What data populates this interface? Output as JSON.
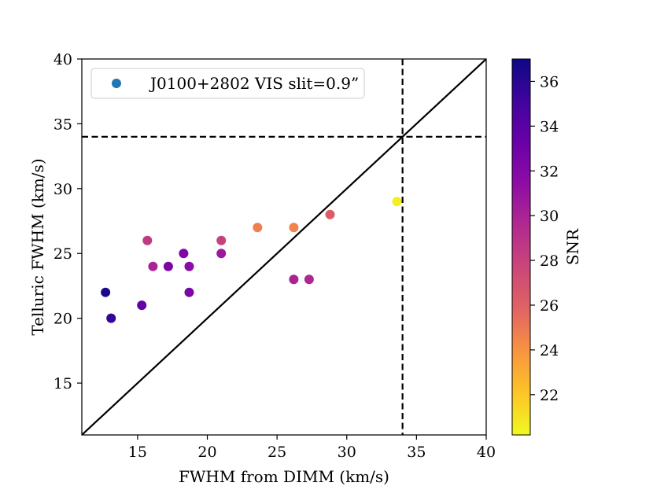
{
  "chart_data": {
    "type": "scatter",
    "xlabel": "FWHM from DIMM (km/s)",
    "ylabel": "Telluric FWHM (km/s)",
    "xlim": [
      11,
      40
    ],
    "ylim": [
      11,
      40
    ],
    "xticks": [
      15,
      20,
      25,
      30,
      35,
      40
    ],
    "yticks": [
      15,
      20,
      25,
      30,
      35,
      40
    ],
    "grid": false,
    "legend": {
      "placement": "top-left",
      "entries": [
        {
          "label": "J0100+2802 VIS slit=0.9”",
          "color": "#1f77b4"
        }
      ]
    },
    "reference_lines": [
      {
        "kind": "diagonal",
        "label": "y = x",
        "style": "solid"
      },
      {
        "kind": "vertical",
        "x": 34,
        "style": "dashed"
      },
      {
        "kind": "horizontal",
        "y": 34,
        "style": "dashed"
      }
    ],
    "colorbar": {
      "label": "SNR",
      "colormap": "plasma",
      "range": [
        20.2,
        37.0
      ],
      "ticks": [
        22,
        24,
        26,
        28,
        30,
        32,
        34,
        36
      ]
    },
    "points": [
      {
        "x": 12.7,
        "y": 22,
        "snr": 36.6
      },
      {
        "x": 13.1,
        "y": 20,
        "snr": 35.7
      },
      {
        "x": 15.3,
        "y": 21,
        "snr": 34.0
      },
      {
        "x": 15.7,
        "y": 26,
        "snr": 29.4
      },
      {
        "x": 16.1,
        "y": 24,
        "snr": 30.6
      },
      {
        "x": 17.2,
        "y": 24,
        "snr": 32.9
      },
      {
        "x": 18.3,
        "y": 25,
        "snr": 32.7
      },
      {
        "x": 18.7,
        "y": 24,
        "snr": 32.2
      },
      {
        "x": 18.7,
        "y": 22,
        "snr": 32.9
      },
      {
        "x": 21.0,
        "y": 26,
        "snr": 28.9
      },
      {
        "x": 21.0,
        "y": 25,
        "snr": 31.3
      },
      {
        "x": 23.6,
        "y": 27,
        "snr": 25.5
      },
      {
        "x": 26.2,
        "y": 27,
        "snr": 25.3
      },
      {
        "x": 26.2,
        "y": 23,
        "snr": 30.7
      },
      {
        "x": 27.3,
        "y": 23,
        "snr": 30.5
      },
      {
        "x": 28.8,
        "y": 28,
        "snr": 27.3
      },
      {
        "x": 33.6,
        "y": 29,
        "snr": 20.6
      }
    ]
  }
}
